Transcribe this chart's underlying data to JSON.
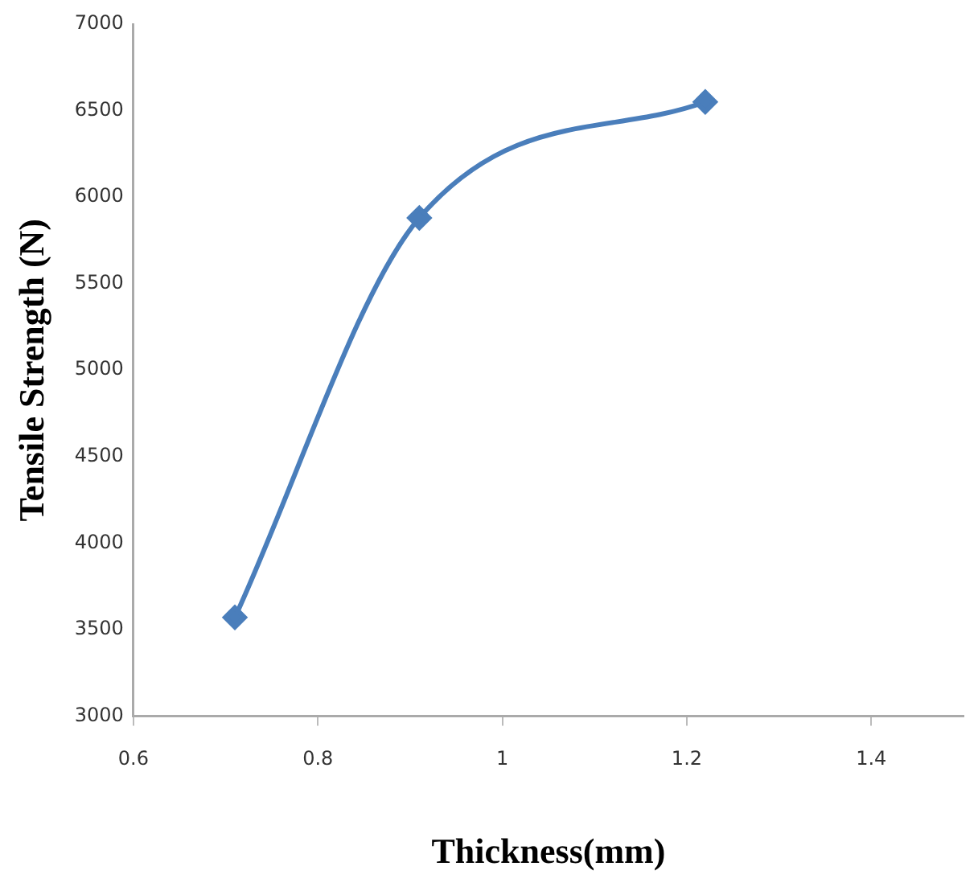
{
  "chart_data": {
    "type": "line",
    "xlabel": "Thickness(mm)",
    "ylabel": "Tensile Strength (N)",
    "x": [
      0.71,
      0.91,
      1.22
    ],
    "series": [
      {
        "color": "#4a7ebb",
        "values": [
          3570,
          5880,
          6550
        ]
      }
    ],
    "xlim": [
      0.6,
      1.5
    ],
    "xticks": [
      0.6,
      0.8,
      1,
      1.2,
      1.4
    ],
    "ylim": [
      3000,
      7000
    ],
    "yticks": [
      3000,
      3500,
      4000,
      4500,
      5000,
      5500,
      6000,
      6500,
      7000
    ],
    "grid": false,
    "legend": false,
    "marker": "diamond",
    "line_style": "solid"
  }
}
